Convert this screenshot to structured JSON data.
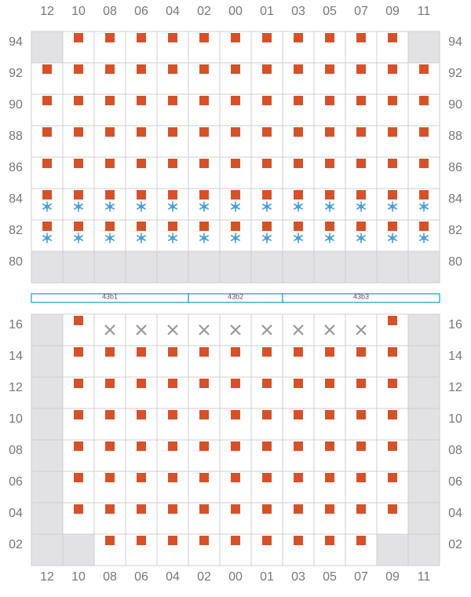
{
  "columns": [
    "12",
    "10",
    "08",
    "06",
    "04",
    "02",
    "00",
    "01",
    "03",
    "05",
    "07",
    "09",
    "11"
  ],
  "top": {
    "rows": [
      {
        "label": "94",
        "cells": [
          "gray",
          "box",
          "box",
          "box",
          "box",
          "box",
          "box",
          "box",
          "box",
          "box",
          "box",
          "box",
          "gray"
        ]
      },
      {
        "label": "92",
        "cells": [
          "box",
          "box",
          "box",
          "box",
          "box",
          "box",
          "box",
          "box",
          "box",
          "box",
          "box",
          "box",
          "box"
        ]
      },
      {
        "label": "90",
        "cells": [
          "box",
          "box",
          "box",
          "box",
          "box",
          "box",
          "box",
          "box",
          "box",
          "box",
          "box",
          "box",
          "box"
        ]
      },
      {
        "label": "88",
        "cells": [
          "box",
          "box",
          "box",
          "box",
          "box",
          "box",
          "box",
          "box",
          "box",
          "box",
          "box",
          "box",
          "box"
        ]
      },
      {
        "label": "86",
        "cells": [
          "box",
          "box",
          "box",
          "box",
          "box",
          "box",
          "box",
          "box",
          "box",
          "box",
          "box",
          "box",
          "box"
        ]
      },
      {
        "label": "84",
        "cells": [
          "box-cold",
          "box-cold",
          "box-cold",
          "box-cold",
          "box-cold",
          "box-cold",
          "box-cold",
          "box-cold",
          "box-cold",
          "box-cold",
          "box-cold",
          "box-cold",
          "box-cold"
        ]
      },
      {
        "label": "82",
        "cells": [
          "box-cold",
          "box-cold",
          "box-cold",
          "box-cold",
          "box-cold",
          "box-cold",
          "box-cold",
          "box-cold",
          "box-cold",
          "box-cold",
          "box-cold",
          "box-cold",
          "box-cold"
        ]
      },
      {
        "label": "80",
        "cells": [
          "gray",
          "gray",
          "gray",
          "gray",
          "gray",
          "gray",
          "gray",
          "gray",
          "gray",
          "gray",
          "gray",
          "gray",
          "gray"
        ]
      }
    ]
  },
  "sections": [
    "43b1",
    "43b2",
    "43b3"
  ],
  "bottom": {
    "rows": [
      {
        "label": "16",
        "cells": [
          "gray",
          "box",
          "x",
          "x",
          "x",
          "x",
          "x",
          "x",
          "x",
          "x",
          "x",
          "box",
          "gray"
        ]
      },
      {
        "label": "14",
        "cells": [
          "gray",
          "box",
          "box",
          "box",
          "box",
          "box",
          "box",
          "box",
          "box",
          "box",
          "box",
          "box",
          "gray"
        ]
      },
      {
        "label": "12",
        "cells": [
          "gray",
          "box",
          "box",
          "box",
          "box",
          "box",
          "box",
          "box",
          "box",
          "box",
          "box",
          "box",
          "gray"
        ]
      },
      {
        "label": "10",
        "cells": [
          "gray",
          "box",
          "box",
          "box",
          "box",
          "box",
          "box",
          "box",
          "box",
          "box",
          "box",
          "box",
          "gray"
        ]
      },
      {
        "label": "08",
        "cells": [
          "gray",
          "box",
          "box",
          "box",
          "box",
          "box",
          "box",
          "box",
          "box",
          "box",
          "box",
          "box",
          "gray"
        ]
      },
      {
        "label": "06",
        "cells": [
          "gray",
          "box",
          "box",
          "box",
          "box",
          "box",
          "box",
          "box",
          "box",
          "box",
          "box",
          "box",
          "gray"
        ]
      },
      {
        "label": "04",
        "cells": [
          "gray",
          "box",
          "box",
          "box",
          "box",
          "box",
          "box",
          "box",
          "box",
          "box",
          "box",
          "box",
          "gray"
        ]
      },
      {
        "label": "02",
        "cells": [
          "gray",
          "gray",
          "box",
          "box",
          "box",
          "box",
          "box",
          "box",
          "box",
          "box",
          "box",
          "gray",
          "gray"
        ]
      }
    ]
  }
}
